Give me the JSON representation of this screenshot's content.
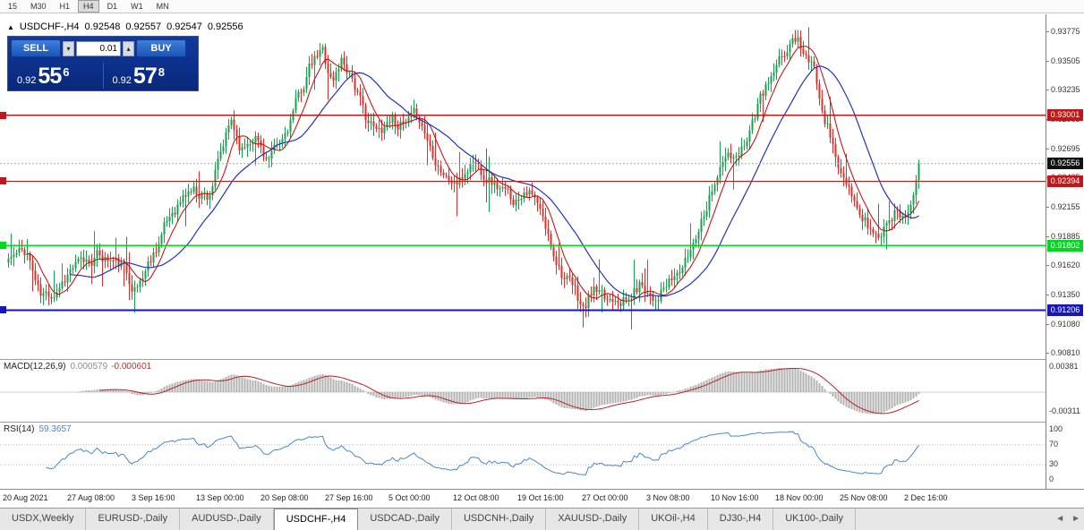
{
  "toolbar": {
    "periods": [
      "15",
      "M30",
      "H1",
      "H4",
      "D1",
      "W1",
      "MN"
    ],
    "active_period": "H4"
  },
  "chart_header": {
    "collapse_icon": "▲",
    "symbol": "USDCHF-,H4",
    "open": "0.92548",
    "high": "0.92557",
    "low": "0.92547",
    "close": "0.92556"
  },
  "one_click": {
    "sell_label": "SELL",
    "buy_label": "BUY",
    "lot_value": "0.01",
    "down_icon": "▾",
    "up_icon": "▴",
    "sell_price_small": "0.92",
    "sell_price_big": "55",
    "sell_price_sup": "6",
    "buy_price_small": "0.92",
    "buy_price_big": "57",
    "buy_price_sup": "8"
  },
  "price_axis": {
    "ticks": [
      "0.93775",
      "0.93505",
      "0.93235",
      "0.92965",
      "0.92695",
      "0.92425",
      "0.92155",
      "0.91885",
      "0.91620",
      "0.91350",
      "0.91080",
      "0.90810"
    ]
  },
  "levels": [
    {
      "label": "0.93001",
      "price": 0.93001,
      "color": "#c01818",
      "kind": "resistance-line"
    },
    {
      "label": "0.92394",
      "price": 0.92394,
      "color": "#c01818",
      "kind": "resistance-line"
    },
    {
      "label": "0.91802",
      "price": 0.91802,
      "color": "#00d81e",
      "kind": "support-line"
    },
    {
      "label": "0.91206",
      "price": 0.91206,
      "color": "#1616bb",
      "kind": "support-line"
    }
  ],
  "current_price": {
    "label": "0.92556",
    "price": 0.92556,
    "tag_color": "#111111"
  },
  "macd": {
    "label": "MACD(12,26,9)",
    "main_value": "0.000579",
    "signal_value": "-0.000601",
    "axis_max": "0.00381",
    "axis_min": "-0.00311",
    "hist_color": "#b2b2b2",
    "signal_color": "#bb2222"
  },
  "rsi": {
    "label": "RSI(14)",
    "value": "59.3657",
    "axis": [
      "100",
      "70",
      "30",
      "0"
    ],
    "level_values": [
      70,
      30
    ],
    "line_color": "#4a86c8"
  },
  "date_axis": {
    "labels": [
      "20 Aug 2021",
      "27 Aug 08:00",
      "3 Sep 16:00",
      "13 Sep 00:00",
      "20 Sep 08:00",
      "27 Sep 16:00",
      "5 Oct 00:00",
      "12 Oct 08:00",
      "19 Oct 16:00",
      "27 Oct 00:00",
      "3 Nov 08:00",
      "10 Nov 16:00",
      "18 Nov 00:00",
      "25 Nov 08:00",
      "2 Dec 16:00"
    ]
  },
  "tabs": {
    "items": [
      "USDX,Weekly",
      "EURUSD-,Daily",
      "AUDUSD-,Daily",
      "USDCHF-,H4",
      "USDCAD-,Daily",
      "USDCNH-,Daily",
      "XAUUSD-,Daily",
      "UKOil-,H4",
      "DJ30-,H4",
      "UK100-,Daily"
    ],
    "active": "USDCHF-,H4",
    "scroll_left_icon": "◄",
    "scroll_right_icon": "►"
  },
  "chart_data": {
    "type": "candlestick",
    "symbol": "USDCHF",
    "timeframe": "H4",
    "bars": 340,
    "seed": 11,
    "up_color": "#17a24d",
    "down_color": "#e02f28",
    "ma_fast": {
      "period": 8,
      "color": "#cc0000"
    },
    "ma_slow": {
      "period": 24,
      "color": "#2233bb"
    },
    "y_top_price": 0.93775,
    "y_bottom_price": 0.9081,
    "last_close": 0.92556,
    "price_path": [
      [
        0.0,
        0.9168
      ],
      [
        0.02,
        0.9176
      ],
      [
        0.035,
        0.9133
      ],
      [
        0.05,
        0.9137
      ],
      [
        0.07,
        0.916
      ],
      [
        0.1,
        0.9171
      ],
      [
        0.125,
        0.9161
      ],
      [
        0.14,
        0.9139
      ],
      [
        0.155,
        0.9166
      ],
      [
        0.18,
        0.9212
      ],
      [
        0.2,
        0.9232
      ],
      [
        0.22,
        0.9226
      ],
      [
        0.245,
        0.9296
      ],
      [
        0.256,
        0.9268
      ],
      [
        0.27,
        0.9284
      ],
      [
        0.285,
        0.9258
      ],
      [
        0.3,
        0.9274
      ],
      [
        0.315,
        0.9308
      ],
      [
        0.33,
        0.9342
      ],
      [
        0.345,
        0.936
      ],
      [
        0.356,
        0.933
      ],
      [
        0.366,
        0.9352
      ],
      [
        0.377,
        0.9338
      ],
      [
        0.39,
        0.9302
      ],
      [
        0.405,
        0.9283
      ],
      [
        0.42,
        0.9299
      ],
      [
        0.435,
        0.9289
      ],
      [
        0.45,
        0.9301
      ],
      [
        0.465,
        0.9268
      ],
      [
        0.482,
        0.9241
      ],
      [
        0.495,
        0.9237
      ],
      [
        0.51,
        0.9259
      ],
      [
        0.525,
        0.9245
      ],
      [
        0.545,
        0.9228
      ],
      [
        0.558,
        0.9222
      ],
      [
        0.568,
        0.9236
      ],
      [
        0.582,
        0.9215
      ],
      [
        0.596,
        0.918
      ],
      [
        0.61,
        0.9152
      ],
      [
        0.622,
        0.9138
      ],
      [
        0.632,
        0.912
      ],
      [
        0.642,
        0.914
      ],
      [
        0.655,
        0.9128
      ],
      [
        0.668,
        0.9136
      ],
      [
        0.68,
        0.9128
      ],
      [
        0.695,
        0.9146
      ],
      [
        0.71,
        0.9133
      ],
      [
        0.725,
        0.9143
      ],
      [
        0.745,
        0.9166
      ],
      [
        0.762,
        0.9208
      ],
      [
        0.776,
        0.9242
      ],
      [
        0.79,
        0.9263
      ],
      [
        0.8,
        0.9256
      ],
      [
        0.815,
        0.9291
      ],
      [
        0.83,
        0.9322
      ],
      [
        0.843,
        0.9341
      ],
      [
        0.856,
        0.9362
      ],
      [
        0.866,
        0.9374
      ],
      [
        0.876,
        0.9354
      ],
      [
        0.886,
        0.9338
      ],
      [
        0.9,
        0.929
      ],
      [
        0.915,
        0.9244
      ],
      [
        0.93,
        0.9214
      ],
      [
        0.945,
        0.9198
      ],
      [
        0.956,
        0.9186
      ],
      [
        0.966,
        0.9206
      ],
      [
        0.976,
        0.9213
      ],
      [
        0.986,
        0.9207
      ],
      [
        1.0,
        0.92556
      ]
    ]
  }
}
